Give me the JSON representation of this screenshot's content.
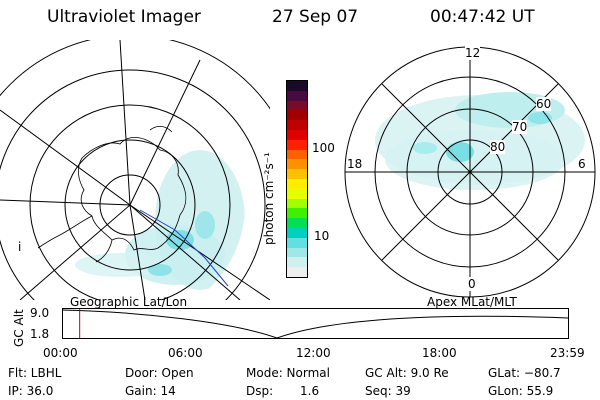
{
  "header": {
    "instrument": "Ultraviolet Imager",
    "date": "27 Sep 07",
    "time": "00:47:42 UT"
  },
  "left_panel": {
    "label": "Geographic Lat/Lon",
    "tick_mark": "i"
  },
  "colorbar": {
    "unit_label": "photon cm⁻²s⁻¹",
    "ticks": [
      "100",
      "10"
    ],
    "colors": [
      "#1a0a2a",
      "#4a0a40",
      "#7a0a28",
      "#a00000",
      "#c00000",
      "#e00000",
      "#ff2000",
      "#ff6000",
      "#ff9000",
      "#ffc000",
      "#ffee00",
      "#e6ff00",
      "#a0ff00",
      "#40f000",
      "#00e050",
      "#00d0c0",
      "#60e0e0",
      "#a0e8e8",
      "#d0f0f0",
      "#eeeeee"
    ]
  },
  "right_panel": {
    "label": "Apex MLat/MLT",
    "mlt_labels": {
      "top": "12",
      "left": "18",
      "right": "6",
      "bottom": "0"
    },
    "lat_labels": [
      "60",
      "70",
      "80"
    ]
  },
  "timeline": {
    "y_label": "GC Alt",
    "y_ticks": [
      "9.0",
      "1.8"
    ],
    "x_ticks": [
      "00:00",
      "06:00",
      "12:00",
      "18:00",
      "23:59"
    ],
    "current_fraction": 0.033,
    "line_color": "#cc0000"
  },
  "info": {
    "flt": "Flt: LBHL",
    "door": "Door: Open",
    "mode": "Mode: Normal",
    "gc_alt": "GC Alt: 9.0 Re",
    "glat": "GLat: −80.7",
    "ip": "IP: 36.0",
    "gain": "Gain: 14",
    "dsp_label": "Dsp:",
    "dsp_value": "1.6",
    "seq": "Seq: 39",
    "glon": "GLon:  55.9"
  }
}
